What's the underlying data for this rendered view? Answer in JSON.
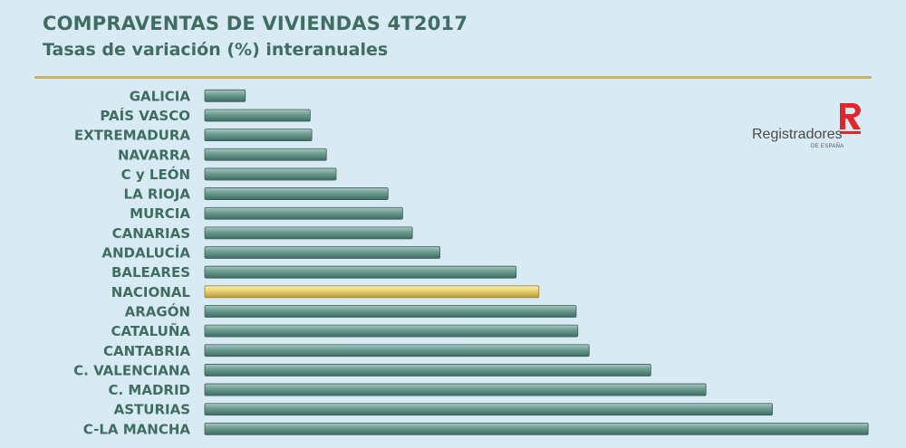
{
  "chart_data": {
    "type": "bar",
    "orientation": "horizontal",
    "title": "COMPRAVENTAS DE VIVIENDAS 4T2017",
    "subtitle": "Tasas de variación (%) interanuales",
    "categories": [
      "GALICIA",
      "PAÍS VASCO",
      "EXTREMADURA",
      "NAVARRA",
      "C y LEÓN",
      "LA RIOJA",
      "MURCIA",
      "CANARIAS",
      "ANDALUCÍA",
      "BALEARES",
      "NACIONAL",
      "ARAGÓN",
      "CATALUÑA",
      "CANTABRIA",
      "C. VALENCIANA",
      "C. MADRID",
      "ASTURIAS",
      "C-LA MANCHA"
    ],
    "values": [
      2.5,
      6.5,
      6.6,
      7.5,
      8.1,
      11.3,
      12.2,
      12.8,
      14.5,
      19.2,
      20.6,
      22.9,
      23.0,
      23.7,
      27.5,
      30.9,
      35.0,
      40.9
    ],
    "highlight": "NACIONAL",
    "xlim": [
      0,
      41
    ],
    "colors": {
      "bar": "#5d8f83",
      "highlight": "#e6cd6a"
    },
    "grid": false,
    "legend": "none"
  },
  "logo": {
    "name": "Registradores",
    "subtitle": "DE ESPAÑA",
    "icon": "registradores-r-icon",
    "color": "#e3262c"
  }
}
